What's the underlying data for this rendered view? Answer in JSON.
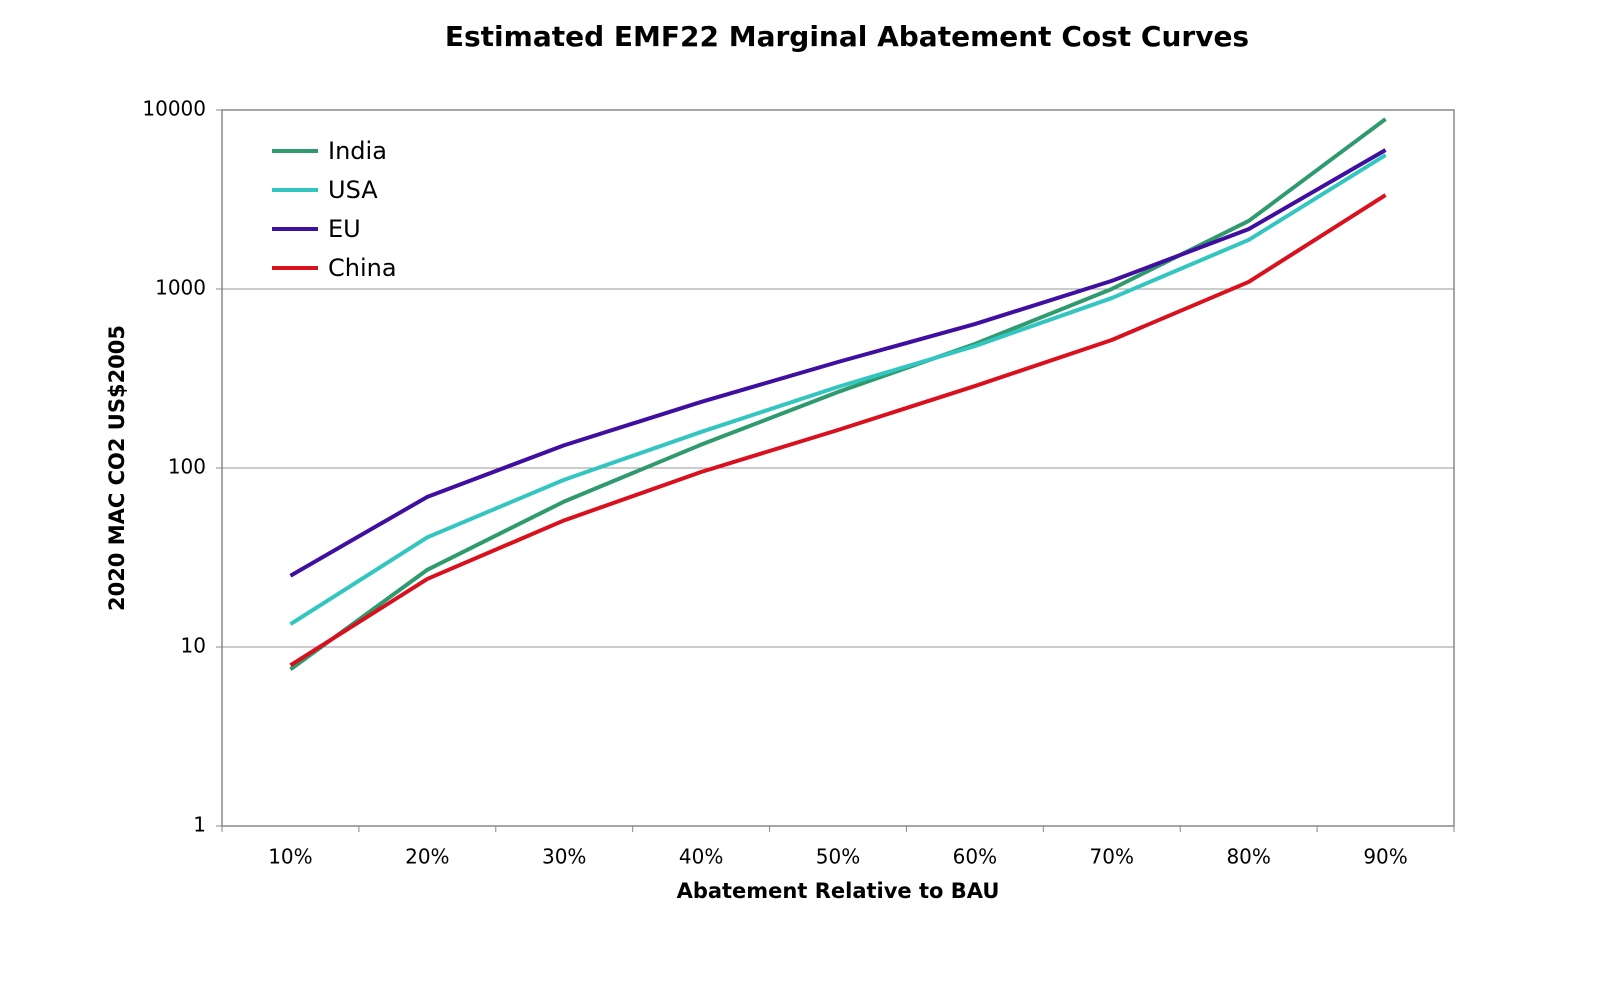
{
  "chart_data": {
    "type": "line",
    "title": "Estimated EMF22 Marginal Abatement Cost Curves",
    "x_label": "Abatement Relative to BAU",
    "y_label": "2020 MAC CO2 US$2005",
    "categories": [
      "10%",
      "20%",
      "30%",
      "40%",
      "50%",
      "60%",
      "70%",
      "80%",
      "90%"
    ],
    "series": [
      {
        "name": "India",
        "color": "#2e9a6e",
        "values": [
          7.5,
          27,
          65,
          135,
          266,
          493,
          1000,
          2400,
          8900
        ]
      },
      {
        "name": "USA",
        "color": "#33c6c0",
        "values": [
          13.4,
          41,
          86,
          159,
          284,
          480,
          890,
          1880,
          5600
        ]
      },
      {
        "name": "EU",
        "color": "#3f0fa0",
        "values": [
          25,
          69,
          134,
          234,
          391,
          637,
          1110,
          2160,
          5980
        ]
      },
      {
        "name": "China",
        "color": "#d9101e",
        "values": [
          7.9,
          24,
          51,
          95,
          163,
          287,
          519,
          1095,
          3350
        ]
      }
    ],
    "ylim": [
      1,
      10000
    ],
    "yticks": [
      1,
      10,
      100,
      1000,
      10000
    ],
    "y_scale": "log",
    "grid": true,
    "legend": "top-left"
  }
}
